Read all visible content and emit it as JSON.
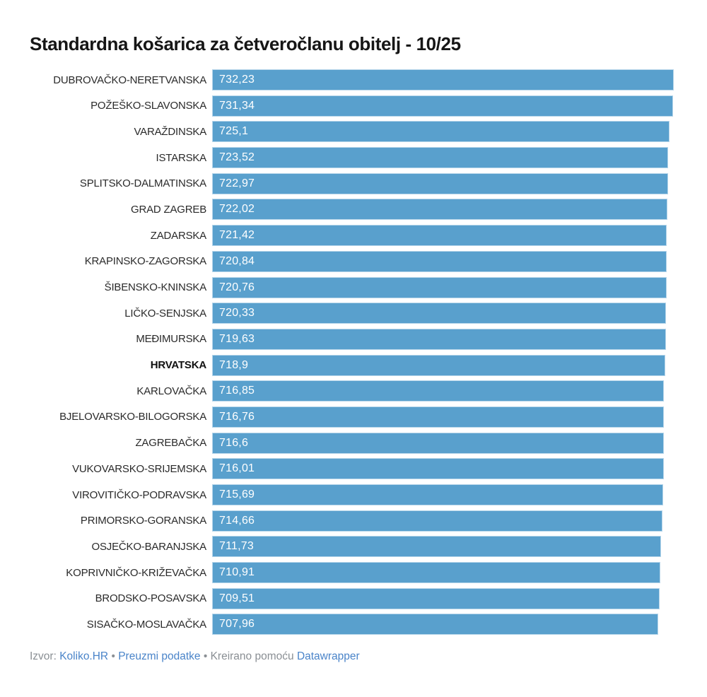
{
  "title": "Standardna košarica za četveročlanu obitelj - 10/25",
  "chart_data": {
    "type": "bar",
    "orientation": "horizontal",
    "title": "Standardna košarica za četveročlanu obitelj - 10/25",
    "categories": [
      "DUBROVAČKO-NERETVANSKA",
      "POŽEŠKO-SLAVONSKA",
      "VARAŽDINSKA",
      "ISTARSKA",
      "SPLITSKO-DALMATINSKA",
      "GRAD ZAGREB",
      "ZADARSKA",
      "KRAPINSKO-ZAGORSKA",
      "ŠIBENSKO-KNINSKA",
      "LIČKO-SENJSKA",
      "MEĐIMURSKA",
      "HRVATSKA",
      "KARLOVAČKA",
      "BJELOVARSKO-BILOGORSKA",
      "ZAGREBAČKA",
      "VUKOVARSKO-SRIJEMSKA",
      "VIROVITIČKO-PODRAVSKA",
      "PRIMORSKO-GORANSKA",
      "OSJEČKO-BARANJSKA",
      "KOPRIVNIČKO-KRIŽEVAČKA",
      "BRODSKO-POSAVSKA",
      "SISAČKO-MOSLAVAČKA"
    ],
    "values": [
      732.23,
      731.34,
      725.1,
      723.52,
      722.97,
      722.02,
      721.42,
      720.84,
      720.76,
      720.33,
      719.63,
      718.9,
      716.85,
      716.76,
      716.6,
      716.01,
      715.69,
      714.66,
      711.73,
      710.91,
      709.51,
      707.96
    ],
    "value_labels": [
      "732,23",
      "731,34",
      "725,1",
      "723,52",
      "722,97",
      "722,02",
      "721,42",
      "720,84",
      "720,76",
      "720,33",
      "719,63",
      "718,9",
      "716,85",
      "716,76",
      "716,6",
      "716,01",
      "715,69",
      "714,66",
      "711,73",
      "710,91",
      "709,51",
      "707,96"
    ],
    "bold_category": "HRVATSKA",
    "xlim": [
      0,
      732.23
    ],
    "grid": false,
    "legend": false,
    "bar_color": "#59a0cd",
    "bar_border_color": "#b7d6ea",
    "value_text_color": "#ffffff"
  },
  "footer": {
    "source_label": "Izvor:",
    "source_link": "Koliko.HR",
    "separator": "•",
    "download_link": "Preuzmi podatke",
    "created_with": "Kreirano pomoću",
    "datawrapper_link": "Datawrapper"
  },
  "colors": {
    "bar": "#59a0cd",
    "bar_border": "#b7d6ea",
    "value_text": "#ffffff",
    "label_text": "#2a2a2a",
    "title_text": "#161616",
    "footer_text": "#8a8f94",
    "link": "#4a84c9",
    "background": "#ffffff"
  }
}
